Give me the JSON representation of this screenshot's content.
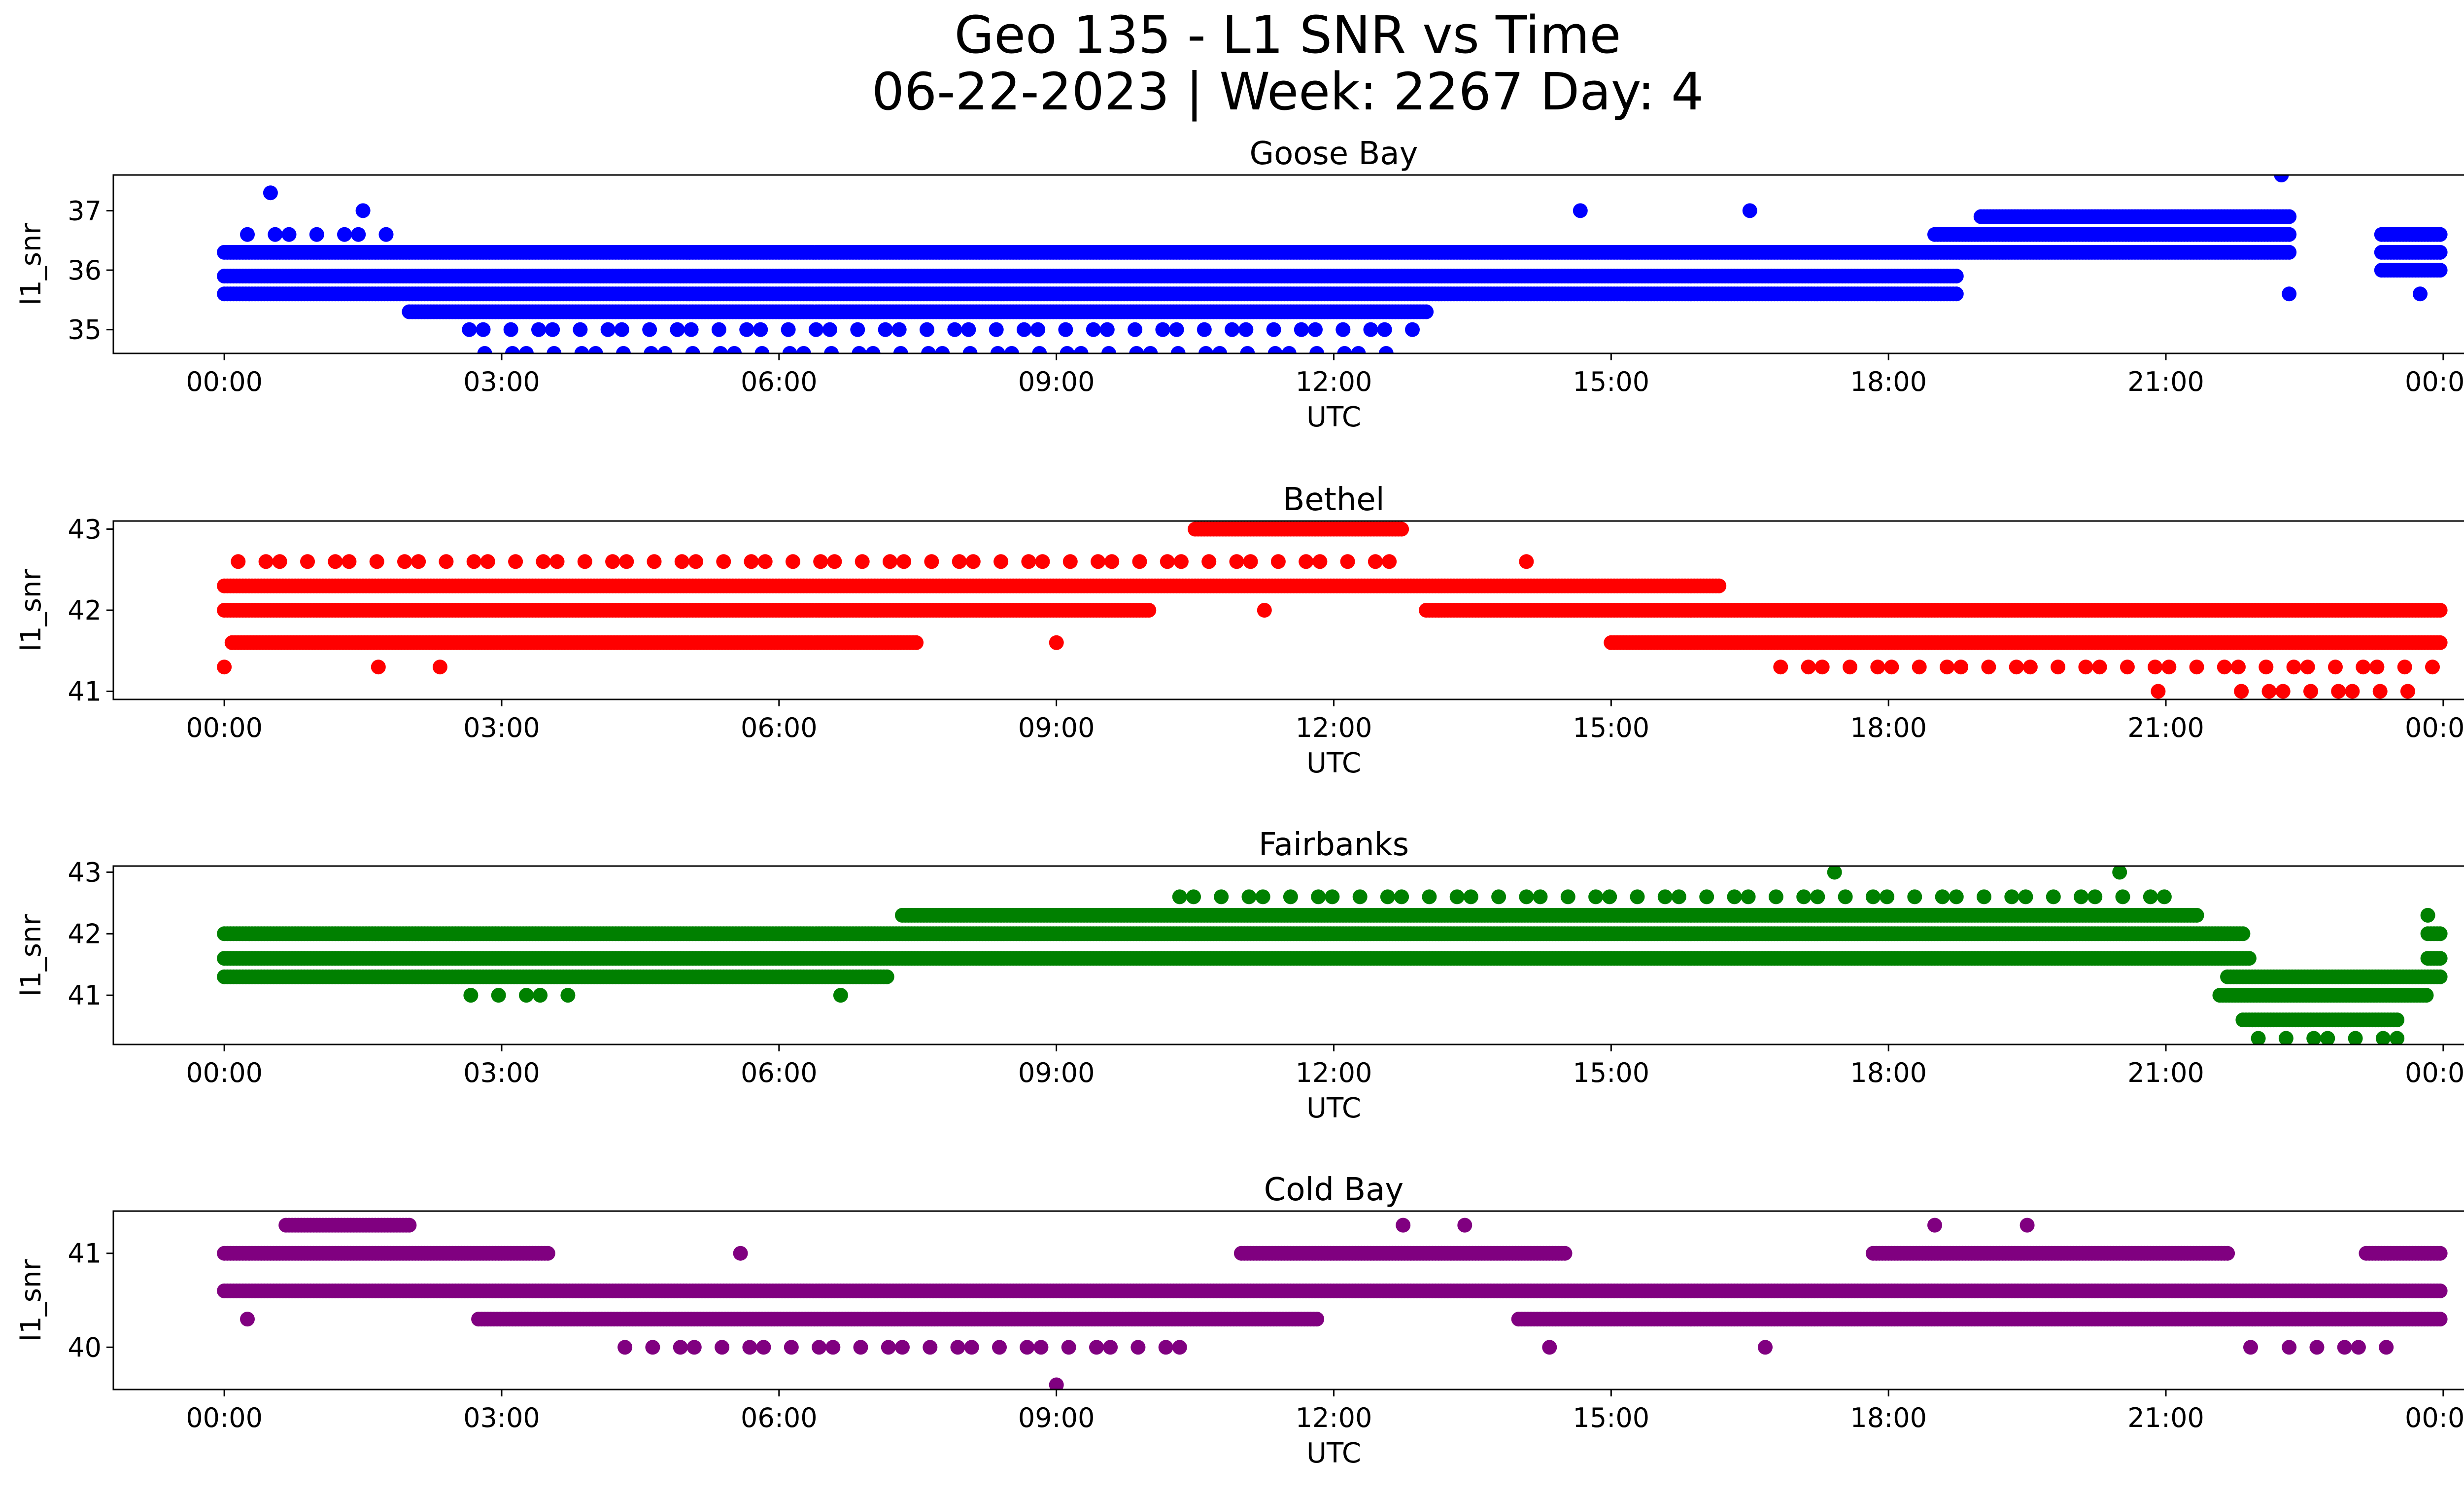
{
  "figure": {
    "title_line1": "Geo 135 - L1 SNR vs Time",
    "title_line2": "06-22-2023 | Week: 2267 Day: 4"
  },
  "chart_data": [
    {
      "type": "scatter",
      "title": "Goose Bay",
      "xlabel": "UTC",
      "ylabel": "l1_snr",
      "color": "#0000ff",
      "xlim": [
        "00:00",
        "24:00"
      ],
      "ylim": [
        34.6,
        37.6
      ],
      "x_ticks": [
        "00:00",
        "03:00",
        "06:00",
        "09:00",
        "12:00",
        "15:00",
        "18:00",
        "21:00",
        "00:00"
      ],
      "y_ticks": [
        35,
        36,
        37
      ],
      "bands": [
        {
          "y": 35.6,
          "from": "00:00",
          "to": "18:45",
          "density": "continuous"
        },
        {
          "y": 35.9,
          "from": "00:00",
          "to": "18:45",
          "density": "continuous"
        },
        {
          "y": 36.3,
          "from": "00:00",
          "to": "22:20",
          "density": "continuous"
        },
        {
          "y": 36.6,
          "from": "18:30",
          "to": "22:20",
          "density": "continuous"
        },
        {
          "y": 36.9,
          "from": "19:00",
          "to": "22:20",
          "density": "continuous"
        },
        {
          "y": 35.3,
          "from": "02:00",
          "to": "13:00",
          "density": "continuous"
        },
        {
          "y": 35.0,
          "from": "02:30",
          "to": "13:00",
          "density": "sparse"
        },
        {
          "y": 36.6,
          "from": "00:15",
          "to": "01:50",
          "density": "sparse"
        },
        {
          "y": 34.6,
          "from": "02:40",
          "to": "12:50",
          "density": "sparse"
        },
        {
          "y": 36.0,
          "from": "23:20",
          "to": "23:59",
          "density": "continuous"
        },
        {
          "y": 36.3,
          "from": "23:20",
          "to": "23:59",
          "density": "continuous"
        },
        {
          "y": 36.6,
          "from": "23:20",
          "to": "23:59",
          "density": "continuous"
        }
      ],
      "outliers": [
        {
          "x": "00:30",
          "y": 37.3
        },
        {
          "x": "01:30",
          "y": 37.0
        },
        {
          "x": "14:40",
          "y": 37.0
        },
        {
          "x": "16:30",
          "y": 37.0
        },
        {
          "x": "22:15",
          "y": 37.6
        },
        {
          "x": "22:20",
          "y": 35.6
        },
        {
          "x": "23:45",
          "y": 35.6
        }
      ]
    },
    {
      "type": "scatter",
      "title": "Bethel",
      "xlabel": "UTC",
      "ylabel": "l1_snr",
      "color": "#ff0000",
      "xlim": [
        "00:00",
        "24:00"
      ],
      "ylim": [
        40.9,
        43.1
      ],
      "x_ticks": [
        "00:00",
        "03:00",
        "06:00",
        "09:00",
        "12:00",
        "15:00",
        "18:00",
        "21:00",
        "00:00"
      ],
      "y_ticks": [
        41,
        42,
        43
      ],
      "bands": [
        {
          "y": 42.3,
          "from": "00:00",
          "to": "16:10",
          "density": "continuous"
        },
        {
          "y": 42.0,
          "from": "00:00",
          "to": "10:00",
          "density": "continuous"
        },
        {
          "y": 41.6,
          "from": "00:05",
          "to": "07:30",
          "density": "continuous"
        },
        {
          "y": 42.6,
          "from": "00:00",
          "to": "12:40",
          "density": "sparse"
        },
        {
          "y": 43.0,
          "from": "10:30",
          "to": "12:45",
          "density": "continuous"
        },
        {
          "y": 42.0,
          "from": "13:00",
          "to": "23:59",
          "density": "continuous"
        },
        {
          "y": 41.6,
          "from": "15:00",
          "to": "23:59",
          "density": "continuous"
        },
        {
          "y": 41.3,
          "from": "16:50",
          "to": "23:59",
          "density": "sparse"
        },
        {
          "y": 41.0,
          "from": "21:40",
          "to": "23:40",
          "density": "sparse"
        }
      ],
      "outliers": [
        {
          "x": "00:00",
          "y": 41.3
        },
        {
          "x": "01:40",
          "y": 41.3
        },
        {
          "x": "02:20",
          "y": 41.3
        },
        {
          "x": "09:00",
          "y": 41.6
        },
        {
          "x": "11:15",
          "y": 42.0
        },
        {
          "x": "14:05",
          "y": 42.6
        },
        {
          "x": "20:55",
          "y": 41.0
        }
      ]
    },
    {
      "type": "scatter",
      "title": "Fairbanks",
      "xlabel": "UTC",
      "ylabel": "l1_snr",
      "color": "#008000",
      "xlim": [
        "00:00",
        "24:00"
      ],
      "ylim": [
        40.2,
        43.1
      ],
      "x_ticks": [
        "00:00",
        "03:00",
        "06:00",
        "09:00",
        "12:00",
        "15:00",
        "18:00",
        "21:00",
        "00:00"
      ],
      "y_ticks": [
        41,
        42,
        43
      ],
      "bands": [
        {
          "y": 41.6,
          "from": "00:00",
          "to": "21:55",
          "density": "continuous"
        },
        {
          "y": 42.0,
          "from": "00:00",
          "to": "21:50",
          "density": "continuous"
        },
        {
          "y": 42.3,
          "from": "07:20",
          "to": "21:20",
          "density": "continuous"
        },
        {
          "y": 41.3,
          "from": "00:00",
          "to": "07:10",
          "density": "continuous"
        },
        {
          "y": 41.0,
          "from": "02:40",
          "to": "04:00",
          "density": "sparse"
        },
        {
          "y": 42.6,
          "from": "10:20",
          "to": "21:10",
          "density": "sparse"
        },
        {
          "y": 41.3,
          "from": "21:40",
          "to": "23:59",
          "density": "continuous"
        },
        {
          "y": 41.0,
          "from": "21:35",
          "to": "23:50",
          "density": "continuous"
        },
        {
          "y": 40.6,
          "from": "21:50",
          "to": "23:30",
          "density": "continuous"
        },
        {
          "y": 40.3,
          "from": "22:00",
          "to": "23:30",
          "density": "sparse"
        },
        {
          "y": 42.0,
          "from": "23:50",
          "to": "23:59",
          "density": "continuous"
        },
        {
          "y": 41.6,
          "from": "23:50",
          "to": "23:59",
          "density": "continuous"
        }
      ],
      "outliers": [
        {
          "x": "06:40",
          "y": 41.0
        },
        {
          "x": "17:25",
          "y": 43.0
        },
        {
          "x": "20:30",
          "y": 43.0
        },
        {
          "x": "23:50",
          "y": 42.3
        }
      ]
    },
    {
      "type": "scatter",
      "title": "Cold Bay",
      "xlabel": "UTC",
      "ylabel": "l1_snr",
      "color": "#800080",
      "xlim": [
        "00:00",
        "24:00"
      ],
      "ylim": [
        39.55,
        41.45
      ],
      "x_ticks": [
        "00:00",
        "03:00",
        "06:00",
        "09:00",
        "12:00",
        "15:00",
        "18:00",
        "21:00",
        "00:00"
      ],
      "y_ticks": [
        40,
        41
      ],
      "bands": [
        {
          "y": 40.6,
          "from": "00:00",
          "to": "23:59",
          "density": "continuous"
        },
        {
          "y": 41.0,
          "from": "00:00",
          "to": "03:30",
          "density": "continuous"
        },
        {
          "y": 41.3,
          "from": "00:40",
          "to": "02:00",
          "density": "continuous"
        },
        {
          "y": 40.3,
          "from": "02:45",
          "to": "11:50",
          "density": "continuous"
        },
        {
          "y": 40.0,
          "from": "04:20",
          "to": "10:30",
          "density": "sparse"
        },
        {
          "y": 41.0,
          "from": "11:00",
          "to": "14:30",
          "density": "continuous"
        },
        {
          "y": 40.3,
          "from": "14:00",
          "to": "23:59",
          "density": "continuous"
        },
        {
          "y": 41.0,
          "from": "17:50",
          "to": "21:40",
          "density": "continuous"
        },
        {
          "y": 41.0,
          "from": "23:10",
          "to": "23:59",
          "density": "continuous"
        },
        {
          "y": 40.0,
          "from": "22:20",
          "to": "23:40",
          "density": "sparse"
        }
      ],
      "outliers": [
        {
          "x": "00:15",
          "y": 40.3
        },
        {
          "x": "05:35",
          "y": 41.0
        },
        {
          "x": "09:00",
          "y": 39.6
        },
        {
          "x": "12:45",
          "y": 41.3
        },
        {
          "x": "13:25",
          "y": 41.3
        },
        {
          "x": "14:20",
          "y": 40.0
        },
        {
          "x": "16:40",
          "y": 40.0
        },
        {
          "x": "18:30",
          "y": 41.3
        },
        {
          "x": "19:30",
          "y": 41.3
        },
        {
          "x": "21:55",
          "y": 40.0
        }
      ]
    }
  ]
}
